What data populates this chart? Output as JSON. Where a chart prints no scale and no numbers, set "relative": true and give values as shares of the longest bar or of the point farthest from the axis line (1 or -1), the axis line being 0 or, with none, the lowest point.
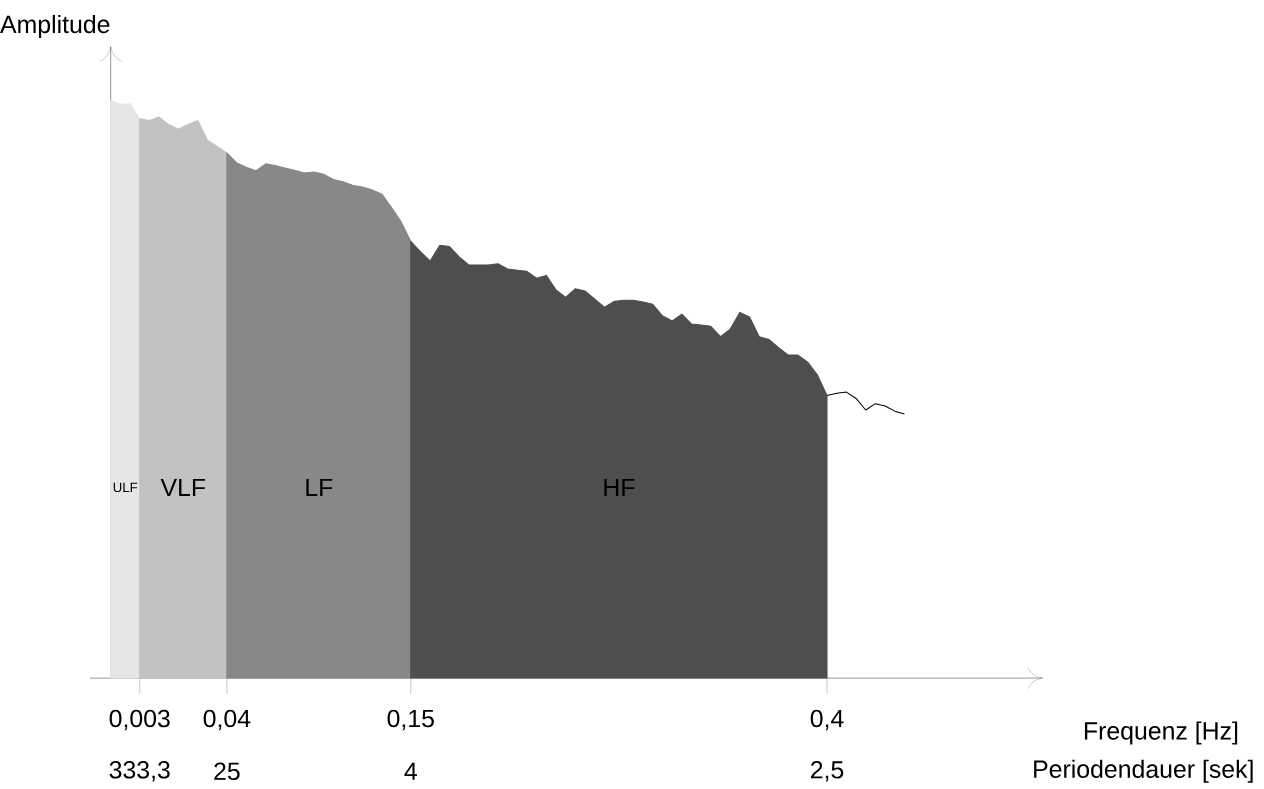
{
  "chart_data": {
    "type": "area",
    "relative": true,
    "ylabel": "Amplitude",
    "categories": [
      null,
      null,
      null,
      "0,003",
      null,
      null,
      null,
      null,
      null,
      null,
      null,
      null,
      "0,04",
      null,
      null,
      null,
      null,
      null,
      null,
      null,
      null,
      null,
      null,
      null,
      null,
      null,
      null,
      null,
      null,
      null,
      null,
      "0,15",
      null,
      null,
      null,
      null,
      null,
      null,
      null,
      null,
      null,
      null,
      null,
      null,
      null,
      null,
      null,
      null,
      null,
      null,
      null,
      null,
      null,
      null,
      null,
      null,
      null,
      null,
      null,
      null,
      null,
      null,
      null,
      null,
      null,
      null,
      null,
      null,
      null,
      null,
      null,
      null,
      null,
      null,
      "0,4",
      null,
      null,
      null,
      null,
      null,
      null,
      null,
      null
    ],
    "tick_labels": "x",
    "annotations": [
      "333,3",
      "25",
      "4",
      "2,5",
      "Frequenz [Hz]",
      "Periodendauer [sek]"
    ],
    "series": [
      {
        "name": "ULF",
        "color": "#e6e6e6",
        "values": [
          1,
          0.993,
          0.994,
          0.968,
          null,
          null,
          null,
          null,
          null,
          null,
          null,
          null,
          null,
          null,
          null,
          null,
          null,
          null,
          null,
          null,
          null,
          null,
          null,
          null,
          null,
          null,
          null,
          null,
          null,
          null,
          null,
          null,
          null,
          null,
          null,
          null,
          null,
          null,
          null,
          null,
          null,
          null,
          null,
          null,
          null,
          null,
          null,
          null,
          null,
          null,
          null,
          null,
          null,
          null,
          null,
          null,
          null,
          null,
          null,
          null,
          null,
          null,
          null,
          null,
          null,
          null,
          null,
          null,
          null,
          null,
          null,
          null,
          null,
          null,
          null,
          null,
          null,
          null,
          null,
          null,
          null,
          null,
          null
        ]
      },
      {
        "name": "VLF",
        "color": "#c2c2c2",
        "values": [
          null,
          null,
          null,
          0.968,
          0.965,
          0.971,
          0.958,
          0.95,
          0.958,
          0.965,
          0.931,
          0.92,
          0.909,
          null,
          null,
          null,
          null,
          null,
          null,
          null,
          null,
          null,
          null,
          null,
          null,
          null,
          null,
          null,
          null,
          null,
          null,
          null,
          null,
          null,
          null,
          null,
          null,
          null,
          null,
          null,
          null,
          null,
          null,
          null,
          null,
          null,
          null,
          null,
          null,
          null,
          null,
          null,
          null,
          null,
          null,
          null,
          null,
          null,
          null,
          null,
          null,
          null,
          null,
          null,
          null,
          null,
          null,
          null,
          null,
          null,
          null,
          null,
          null,
          null,
          null,
          null,
          null,
          null,
          null,
          null,
          null,
          null,
          null
        ]
      },
      {
        "name": "LF",
        "color": "#888888",
        "values": [
          null,
          null,
          null,
          null,
          null,
          null,
          null,
          null,
          null,
          null,
          null,
          null,
          0.909,
          0.892,
          0.884,
          0.878,
          0.89,
          0.887,
          0.883,
          0.879,
          0.874,
          0.876,
          0.872,
          0.863,
          0.859,
          0.853,
          0.85,
          0.845,
          0.838,
          0.815,
          0.79,
          0.756,
          null,
          null,
          null,
          null,
          null,
          null,
          null,
          null,
          null,
          null,
          null,
          null,
          null,
          null,
          null,
          null,
          null,
          null,
          null,
          null,
          null,
          null,
          null,
          null,
          null,
          null,
          null,
          null,
          null,
          null,
          null,
          null,
          null,
          null,
          null,
          null,
          null,
          null,
          null,
          null,
          null,
          null,
          null,
          null,
          null,
          null,
          null,
          null,
          null,
          null,
          null
        ]
      },
      {
        "name": "HF",
        "color": "#4e4e4e",
        "values": [
          null,
          null,
          null,
          null,
          null,
          null,
          null,
          null,
          null,
          null,
          null,
          null,
          null,
          null,
          null,
          null,
          null,
          null,
          null,
          null,
          null,
          null,
          null,
          null,
          null,
          null,
          null,
          null,
          null,
          null,
          null,
          0.756,
          0.738,
          0.722,
          0.749,
          0.747,
          0.729,
          0.715,
          0.715,
          0.715,
          0.717,
          0.708,
          0.706,
          0.704,
          0.692,
          0.697,
          0.672,
          0.659,
          0.674,
          0.67,
          0.656,
          0.642,
          0.652,
          0.654,
          0.654,
          0.651,
          0.647,
          0.627,
          0.618,
          0.63,
          0.613,
          0.611,
          0.609,
          0.591,
          0.604,
          0.633,
          0.625,
          0.591,
          0.586,
          0.572,
          0.559,
          0.559,
          0.547,
          0.525,
          0.489,
          null,
          null,
          null,
          null,
          null,
          null,
          null,
          null
        ]
      },
      {
        "type": "line",
        "color": "#000000",
        "values": [
          null,
          null,
          null,
          null,
          null,
          null,
          null,
          null,
          null,
          null,
          null,
          null,
          null,
          null,
          null,
          null,
          null,
          null,
          null,
          null,
          null,
          null,
          null,
          null,
          null,
          null,
          null,
          null,
          null,
          null,
          null,
          null,
          null,
          null,
          null,
          null,
          null,
          null,
          null,
          null,
          null,
          null,
          null,
          null,
          null,
          null,
          null,
          null,
          null,
          null,
          null,
          null,
          null,
          null,
          null,
          null,
          null,
          null,
          null,
          null,
          null,
          null,
          null,
          null,
          null,
          null,
          null,
          null,
          null,
          null,
          null,
          null,
          null,
          null,
          0.489,
          0.493,
          0.495,
          0.484,
          0.464,
          0.475,
          0.471,
          0.462,
          0.457
        ]
      }
    ]
  }
}
